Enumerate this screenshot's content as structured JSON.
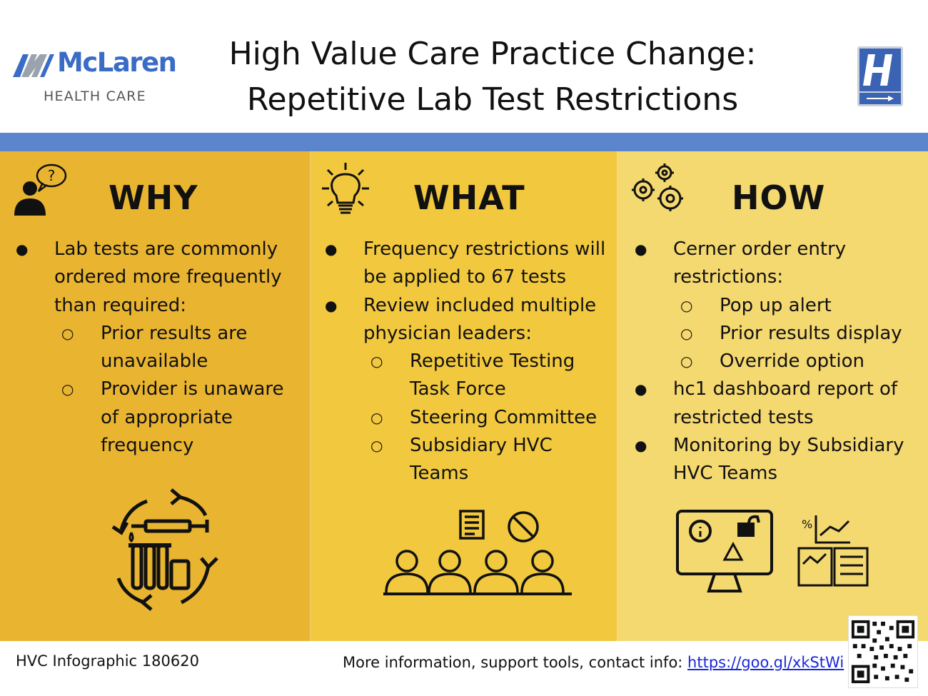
{
  "header": {
    "logo": {
      "name": "McLaren",
      "subtitle": "HEALTH CARE"
    },
    "title_line1": "High Value Care Practice Change:",
    "title_line2": "Repetitive Lab Test Restrictions"
  },
  "colors": {
    "blue_band": "#5b86cd",
    "why_bg": "#e9b430",
    "what_bg": "#f1c83e",
    "how_bg": "#f4d870",
    "link": "#1a27d8"
  },
  "why": {
    "heading": "WHY",
    "icon": "person-question-icon",
    "bullets": [
      {
        "text": "Lab tests are commonly ordered more frequently than required:",
        "subs": [
          "Prior results are unavailable",
          "Provider is unaware of appropriate frequency"
        ]
      }
    ],
    "illustration": "lab-tests-cycle-icon"
  },
  "what": {
    "heading": "WHAT",
    "icon": "lightbulb-icon",
    "bullets": [
      {
        "text": "Frequency restrictions will be applied to 67 tests",
        "subs": []
      },
      {
        "text": "Review included multiple physician leaders:",
        "subs": [
          "Repetitive Testing Task Force",
          "Steering Committee",
          "Subsidiary HVC Teams"
        ]
      }
    ],
    "illustration": "physician-team-icon"
  },
  "how": {
    "heading": "HOW",
    "icon": "gears-icon",
    "bullets": [
      {
        "text": "Cerner order entry restrictions:",
        "subs": [
          "Pop up alert",
          "Prior results display",
          "Override option"
        ]
      },
      {
        "text": "hc1 dashboard report of restricted tests",
        "subs": []
      },
      {
        "text": "Monitoring by Subsidiary HVC Teams",
        "subs": []
      }
    ],
    "illustration": "monitor-dashboard-icon"
  },
  "footer": {
    "left": "HVC Infographic 180620",
    "right_text": "More information, support tools, contact info: ",
    "link": "https://goo.gl/xkStWi"
  }
}
